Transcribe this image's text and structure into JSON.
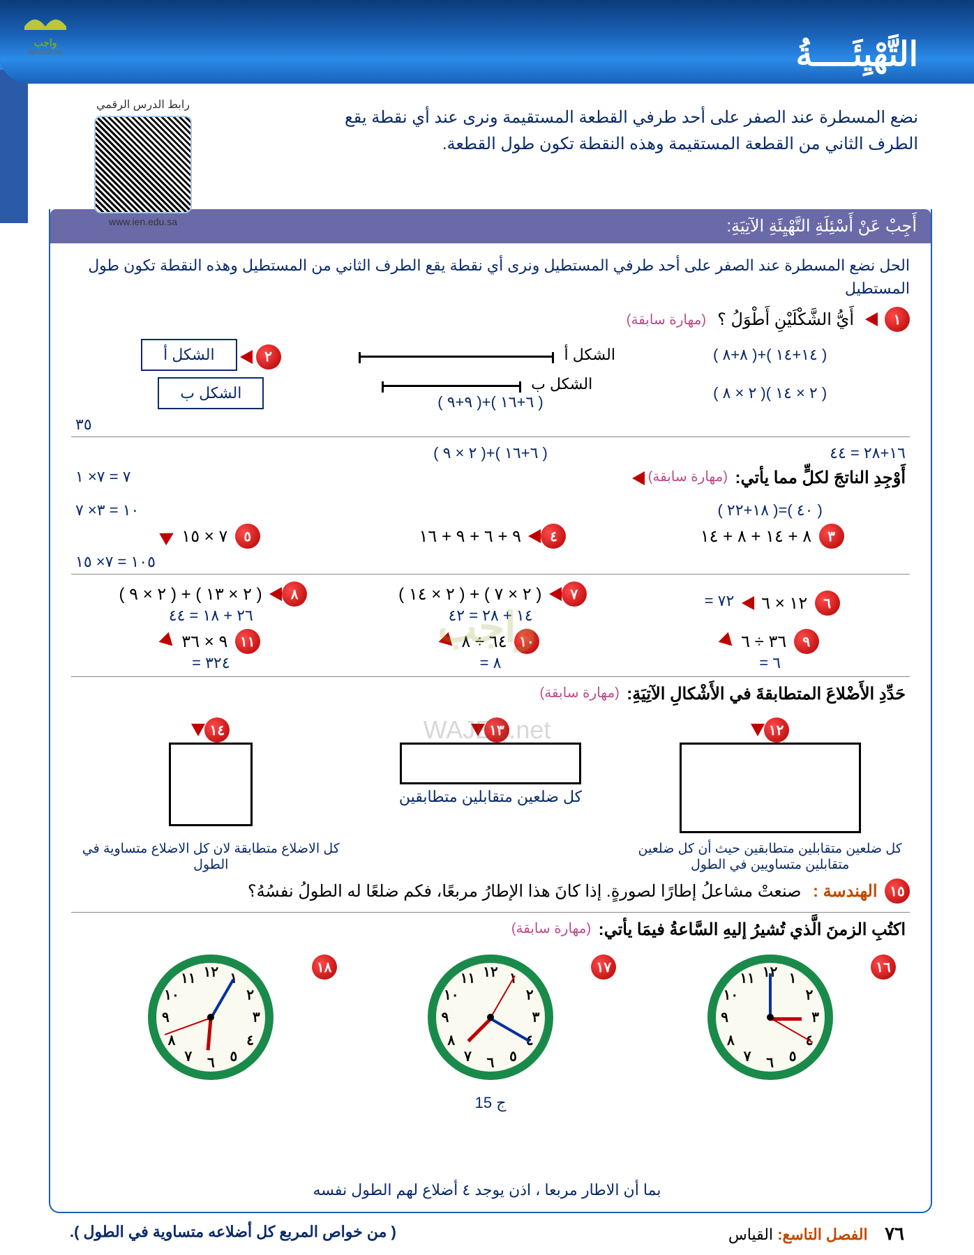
{
  "logo": {
    "name": "واجب",
    "sub": "WAJEB.net"
  },
  "qr": {
    "label": "رابط الدرس الرقمي",
    "url": "www.ien.edu.sa"
  },
  "page_title": "التَّهْيِئَــــةُ",
  "intro_text": "نضع المسطرة عند الصفر على أحد طرفي القطعة المستقيمة ونرى عند أي نقطة يقع الطرف الثاني من القطعة المستقيمة وهذه النقطة تكون طول القطعة.",
  "section1_header": "أَجِبْ عَنْ أَسْئِلَةِ التَّهْيِئَةِ الآتِيَةِ:",
  "solution_text": "الحل نضع المسطرة عند الصفر على أحد طرفي المستطيل ونرى أي نقطة يقع الطرف الثاني من المستطيل وهذه النقطة تكون طول المستطيل",
  "q_shapes": {
    "prompt": "أَيُّ الشَّكْلَيْنِ أَطْوَلُ ؟",
    "prev_skill": "(مهارة سابقة)",
    "shape_a_label": "الشكل أ",
    "shape_b_label": "الشكل ب",
    "ans_box_a": "الشكل أ",
    "ans_box_b": "الشكل ب",
    "calc_a": "( ٨+٨ )+( ١٤+١٤ )",
    "calc_b": "( ٢ × ٨ )( ٢ × ١٤ )",
    "calc_c": "١٦+٢٨ = ٤٤"
  },
  "q_calc": {
    "prompt": "أَوْجِدِ الناتجَ لكلٍّ مما يأتي:",
    "prev_skill": "(مهارة سابقة)",
    "q3": "٨ + ١٤ + ٨ + ١٤",
    "q4": "٩ + ٦ + ٩ + ١٦",
    "q4_ans1": "( ٩+٩ )+( ٦+١٦ )",
    "q4_ans2": "( ٢ × ٩ )+( ٦+١٦ )",
    "q4_ans3": "( ١٨+٢٢ )=( ٤٠ )",
    "q5": "٧ × ١٥",
    "q5_side1": "٧ = ٧× ١",
    "q5_side2": "١٠ = ٣× ٧",
    "q5_side3": "١٠٥ = ٧× ١٥",
    "q5_side4": "٣٥",
    "q6": "١٢ × ٦",
    "q6_ans": "= ٧٢",
    "q7": "( ٢ × ٧ ) + ( ٢ × ١٤ )",
    "q7_ans": "١٤ + ٢٨ = ٤٢",
    "q8": "( ٢ × ١٣ ) + ( ٢ × ٩ )",
    "q8_ans": "٢٦ + ١٨ = ٤٤",
    "q9": "٣٦ ÷ ٦",
    "q9_ans": "= ٦",
    "q10": "٦٤ ÷ ٨",
    "q10_ans": "= ٨",
    "q11": "٩ × ٣٦",
    "q11_ans": "= ٣٢٤"
  },
  "q_sides": {
    "prompt": "حَدِّدِ الأَضْلاعَ المتطابقةَ في الأَشْكالِ الآتِيَةِ:",
    "prev_skill": "(مهارة سابقة)",
    "ans12": "كل ضلعين متقابلين متطابقين حيث أن كل ضلعين متقابلين متساويين في الطول",
    "ans13": "كل ضلعين متقابلين متطابقين",
    "ans14": "كل الاضلاع متطابقة لان كل الاضلاع متساوية في الطول"
  },
  "q15": {
    "label": "الهندسة :",
    "text": "صنعتْ مشاعلُ إطارًا لصورةٍ. إذا كانَ هذا الإطارُ مربعًا، فكم ضلعًا له الطولُ نفسُهُ؟",
    "bottom_ans": "بما أن الاطار مربعا ، اذن يوجد ٤ أضلاع لهم الطول نفسه",
    "page_ref": "ج 15"
  },
  "q_clocks": {
    "prompt": "اكتُبِ الزمنَ الَّذي تُشيرُ إليهِ السَّاعةُ فيمَا يأتي:",
    "prev_skill": "(مهارة سابقة)",
    "clocks": [
      {
        "num": "١٦",
        "hour_angle": 0,
        "min_angle": -90,
        "sec_angle": 30
      },
      {
        "num": "١٧",
        "hour_angle": 135,
        "min_angle": 30,
        "sec_angle": -60
      },
      {
        "num": "١٨",
        "hour_angle": 95,
        "min_angle": -60,
        "sec_angle": 160
      }
    ],
    "arabic_nums": [
      "١٢",
      "١",
      "٢",
      "٣",
      "٤",
      "٥",
      "٦",
      "٧",
      "٨",
      "٩",
      "١٠",
      "١١"
    ]
  },
  "footer": {
    "page": "٧٦",
    "chapter_label": "الفصل التاسع:",
    "chapter_name": "القياس",
    "note": "( من خواص المربع كل أضلاعه متساوية في الطول )."
  },
  "watermark": {
    "main": "واجب",
    "sub": "WAJEB.net"
  },
  "colors": {
    "primary_blue": "#0a2a6a",
    "answer_blue": "#0a2a6a",
    "magenta": "#c04a8a",
    "orange": "#c04a00",
    "bullet_red": "#c00000",
    "clock_green": "#1a8a4a"
  }
}
